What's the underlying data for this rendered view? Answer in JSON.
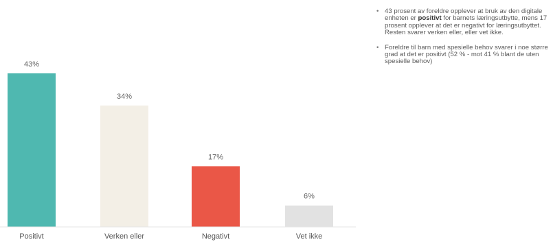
{
  "chart_data": {
    "type": "bar",
    "categories": [
      "Positivt",
      "Verken eller",
      "Negativt",
      "Vet ikke"
    ],
    "values": [
      43,
      34,
      17,
      6
    ],
    "data_labels": [
      "43%",
      "34%",
      "17%",
      "6%"
    ],
    "unit": "%",
    "colors": [
      "#4fb8b0",
      "#f3efe6",
      "#ea5747",
      "#e2e2e2"
    ],
    "title": "",
    "xlabel": "",
    "ylabel": "",
    "ylim": [
      0,
      43
    ],
    "grid": false,
    "legend": "none"
  },
  "notes": [
    {
      "pre": "43 prosent av foreldre opplever at bruk av den digitale enheten er ",
      "bold": "positivt",
      "post": " for barnets læringsutbytte, mens 17 prosent opplever at det er negativt for læringsutbyttet. Resten svarer verken eller, eller vet ikke."
    },
    {
      "pre": "Foreldre til barn med spesielle behov svarer i noe større grad at det er positivt (52 % - mot 41 % blant de uten spesielle behov)",
      "bold": "",
      "post": ""
    }
  ]
}
